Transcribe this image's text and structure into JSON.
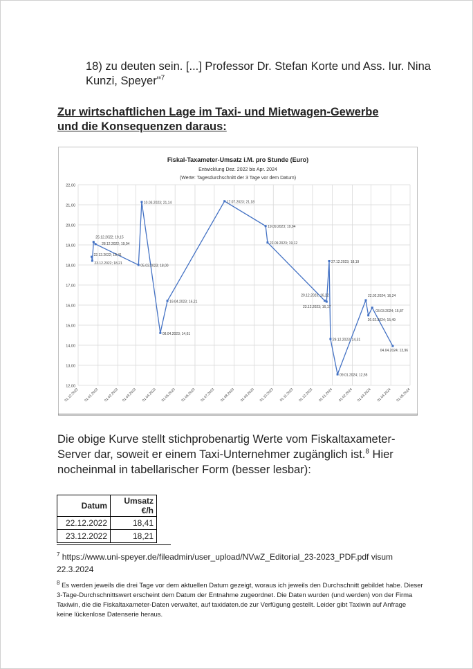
{
  "quote": {
    "text": "18) zu deuten sein.  [...] Professor Dr. Stefan Korte und Ass. Iur. Nina Kunzi, Speyer\"",
    "footnote_ref": "7"
  },
  "heading": {
    "line1": "Zur wirtschaftlichen Lage im Taxi- und Mietwagen-Gewerbe",
    "line2": "und die Konsequenzen daraus:"
  },
  "chart_data": {
    "type": "line",
    "title": "Fiskal-Taxameter-Umsatz i.M. pro Stunde (Euro)",
    "subtitle": "Entwicklung Dez. 2022 bis Apr. 2024",
    "subtitle2": "(Werte: Tagesdurchschnitt der 3 Tage vor dem Datum)",
    "ylim": [
      12,
      22
    ],
    "y_ticks": [
      "12,00",
      "13,00",
      "14,00",
      "15,00",
      "16,00",
      "17,00",
      "18,00",
      "19,00",
      "20,00",
      "21,00",
      "22,00"
    ],
    "x_ticks": [
      "01.12.2022",
      "01.01.2023",
      "01.02.2023",
      "01.03.2023",
      "01.04.2023",
      "01.05.2023",
      "01.06.2023",
      "01.07.2023",
      "01.08.2023",
      "01.09.2023",
      "01.10.2023",
      "01.11.2023",
      "01.12.2023",
      "01.01.2024",
      "01.02.2024",
      "01.03.2024",
      "01.04.2024",
      "01.05.2024"
    ],
    "grid": true,
    "points": [
      {
        "x": "22.12.2022",
        "y": 18.41,
        "label": "22.12.2022; 18,41"
      },
      {
        "x": "23.12.2022",
        "y": 18.21,
        "label": "23.12.2022; 18,21"
      },
      {
        "x": "25.12.2022",
        "y": 19.15,
        "label": "25.12.2022; 19,15"
      },
      {
        "x": "28.12.2022",
        "y": 19.04,
        "label": "28.12.2022; 19,04"
      },
      {
        "x": "05.03.2023",
        "y": 18.0,
        "label": "05.03.2023; 18,00"
      },
      {
        "x": "10.03.2023",
        "y": 21.14,
        "label": "10.03.2023; 21,14"
      },
      {
        "x": "08.04.2023",
        "y": 14.61,
        "label": "08.04.2023; 14,61"
      },
      {
        "x": "19.04.2023",
        "y": 16.21,
        "label": "19.04.2023; 16,21"
      },
      {
        "x": "17.07.2023",
        "y": 21.18,
        "label": "17.07.2023; 21,18"
      },
      {
        "x": "19.09.2023",
        "y": 19.94,
        "label": "19.09.2023; 19,94"
      },
      {
        "x": "22.09.2023",
        "y": 19.12,
        "label": "22.09.2023; 19,12"
      },
      {
        "x": "20.12.2023",
        "y": 16.22,
        "label": "20.12.2023; 16,22"
      },
      {
        "x": "23.12.2023",
        "y": 16.17,
        "label": "23.12.2023; 16,17"
      },
      {
        "x": "27.12.2023",
        "y": 18.19,
        "label": "27.12.2023; 18,19"
      },
      {
        "x": "29.12.2023",
        "y": 14.31,
        "label": "29.12.2023; 14,31"
      },
      {
        "x": "09.01.2024",
        "y": 12.55,
        "label": "09.01.2024; 12,55"
      },
      {
        "x": "22.02.2024",
        "y": 16.24,
        "label": "22.02.2024; 16,24"
      },
      {
        "x": "26.02.2024",
        "y": 15.49,
        "label": "26.02.2024; 15,49"
      },
      {
        "x": "03.03.2024",
        "y": 15.87,
        "label": "03.03.2024; 15,87"
      },
      {
        "x": "04.04.2024",
        "y": 13.96,
        "label": "04.04.2024; 13,96"
      }
    ],
    "line_color": "#4472c4"
  },
  "body": {
    "text": "Die obige Kurve stellt stichprobenartig Werte vom Fiskaltaxameter-Server dar, soweit er einem Taxi-Unternehmer zugänglich ist.",
    "footnote_ref": "8",
    "text_after": " Hier nocheinmal in tabellarischer Form (besser lesbar):"
  },
  "table": {
    "headers": [
      "Datum",
      "Umsatz €/h"
    ],
    "rows": [
      [
        "22.12.2022",
        "18,41"
      ],
      [
        "23.12.2022",
        "18,21"
      ]
    ]
  },
  "footnotes": {
    "fn7_num": "7",
    "fn7_text": " https://www.uni-speyer.de/fileadmin/user_upload/NVwZ_Editorial_23-2023_PDF.pdf visum 22.3.2024",
    "fn8_num": "8",
    "fn8_text": " Es werden jeweils die drei Tage vor dem aktuellen Datum gezeigt, woraus ich jeweils den Durchschnitt gebildet habe. Dieser 3-Tage-Durchschnittswert erscheint dem Datum der Entnahme zugeordnet. Die Daten wurden (und werden) von der Firma Taxiwin, die die Fiskaltaxameter-Daten verwaltet,  auf taxidaten.de zur Verfügung gestellt. Leider gibt Taxiwin auf Anfrage keine lückenlose Datenserie heraus."
  }
}
